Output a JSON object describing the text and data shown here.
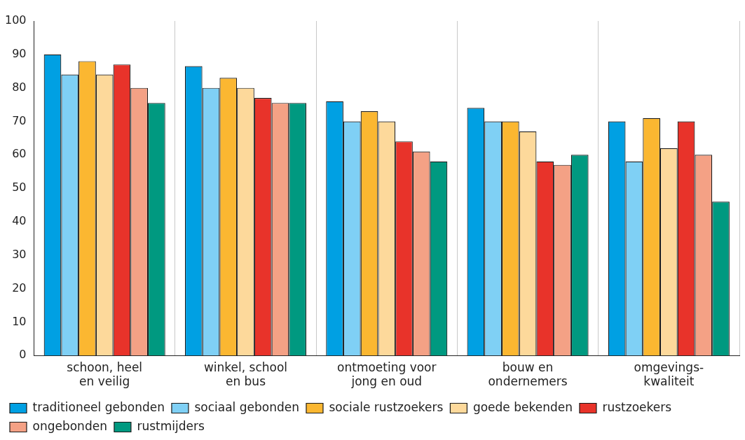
{
  "chart_data": {
    "type": "bar",
    "categories": [
      "schoon, heel\nen veilig",
      "winkel, school\nen bus",
      "ontmoeting voor\njong en oud",
      "bouw en\nondernemers",
      "omgevings-\nkwaliteit"
    ],
    "series": [
      {
        "name": "traditioneel gebonden",
        "color": "#00a0e3",
        "values": [
          90,
          86.5,
          76,
          74,
          70
        ]
      },
      {
        "name": "sociaal gebonden",
        "color": "#7fd0f5",
        "values": [
          84,
          80,
          70,
          70,
          58
        ]
      },
      {
        "name": "sociale rustzoekers",
        "color": "#fbb731",
        "values": [
          88,
          83,
          73,
          70,
          71
        ]
      },
      {
        "name": "goede bekenden",
        "color": "#fdd99b",
        "values": [
          84,
          80,
          70,
          67,
          62
        ]
      },
      {
        "name": "rustzoekers",
        "color": "#e8332a",
        "values": [
          87,
          77,
          64,
          58,
          70
        ]
      },
      {
        "name": "ongebonden",
        "color": "#f4a185",
        "values": [
          80,
          75.5,
          61,
          57,
          60
        ]
      },
      {
        "name": "rustmijders",
        "color": "#009980",
        "values": [
          75.5,
          75.5,
          58,
          60,
          46
        ]
      }
    ],
    "ylim": [
      0,
      100
    ],
    "yticks": [
      0,
      10,
      20,
      30,
      40,
      50,
      60,
      70,
      80,
      90,
      100
    ],
    "grid": "x",
    "legend": "bottom"
  }
}
